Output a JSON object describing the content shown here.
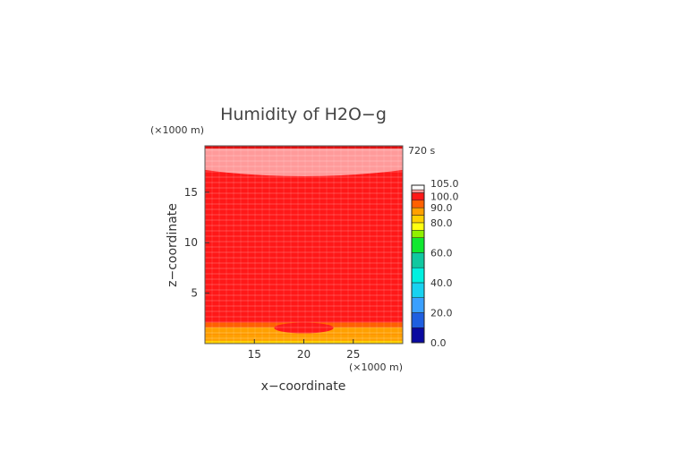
{
  "chart_data": {
    "type": "heatmap",
    "title": "Humidity of H2O−g",
    "time_label": "720 s",
    "xlabel": "x−coordinate",
    "ylabel": "z−coordinate",
    "x_unit": "(×1000 m)",
    "y_unit": "(×1000 m)",
    "xlim": [
      10,
      30
    ],
    "ylim": [
      0,
      19.6
    ],
    "x_ticks": [
      "15",
      "20",
      "25"
    ],
    "y_ticks": [
      "5",
      "10",
      "15"
    ],
    "colorbar": {
      "min": 0,
      "max": 105,
      "tick_labels": [
        "0.0",
        "20.0",
        "40.0",
        "60.0",
        "80.0",
        "90.0",
        "100.0",
        "105.0"
      ],
      "levels": [
        {
          "from": 0,
          "to": 10,
          "color": "#0a0aa0"
        },
        {
          "from": 10,
          "to": 20,
          "color": "#1f5fe0"
        },
        {
          "from": 20,
          "to": 30,
          "color": "#3aa0ff"
        },
        {
          "from": 30,
          "to": 40,
          "color": "#18d2f0"
        },
        {
          "from": 40,
          "to": 50,
          "color": "#00f0e0"
        },
        {
          "from": 50,
          "to": 60,
          "color": "#10c8a0"
        },
        {
          "from": 60,
          "to": 70,
          "color": "#10e830"
        },
        {
          "from": 70,
          "to": 75,
          "color": "#90f000"
        },
        {
          "from": 75,
          "to": 80,
          "color": "#ffff10"
        },
        {
          "from": 80,
          "to": 85,
          "color": "#ffd000"
        },
        {
          "from": 85,
          "to": 90,
          "color": "#ffa000"
        },
        {
          "from": 90,
          "to": 95,
          "color": "#ff6000"
        },
        {
          "from": 95,
          "to": 100,
          "color": "#ff1818"
        },
        {
          "from": 100,
          "to": 102,
          "color": "#ff9a9a"
        },
        {
          "from": 102,
          "to": 105,
          "color": "#ffffff"
        }
      ]
    },
    "field_regions": [
      {
        "region": "z 0.0–0.3",
        "value": 80
      },
      {
        "region": "z 0.3–0.9",
        "value": 85
      },
      {
        "region": "z 0.9–1.6",
        "value": 88
      },
      {
        "region": "z 1.6–2.1",
        "value": 92
      },
      {
        "region": "z 2.1–2.7",
        "value": 95
      },
      {
        "region": "z 2.7–17.2 (bulk)",
        "value": 99
      },
      {
        "region": "lens near x 20, z 1.6",
        "value": 98
      },
      {
        "region": "dome z 16.5–19.6 (top)",
        "value": 101
      }
    ]
  }
}
